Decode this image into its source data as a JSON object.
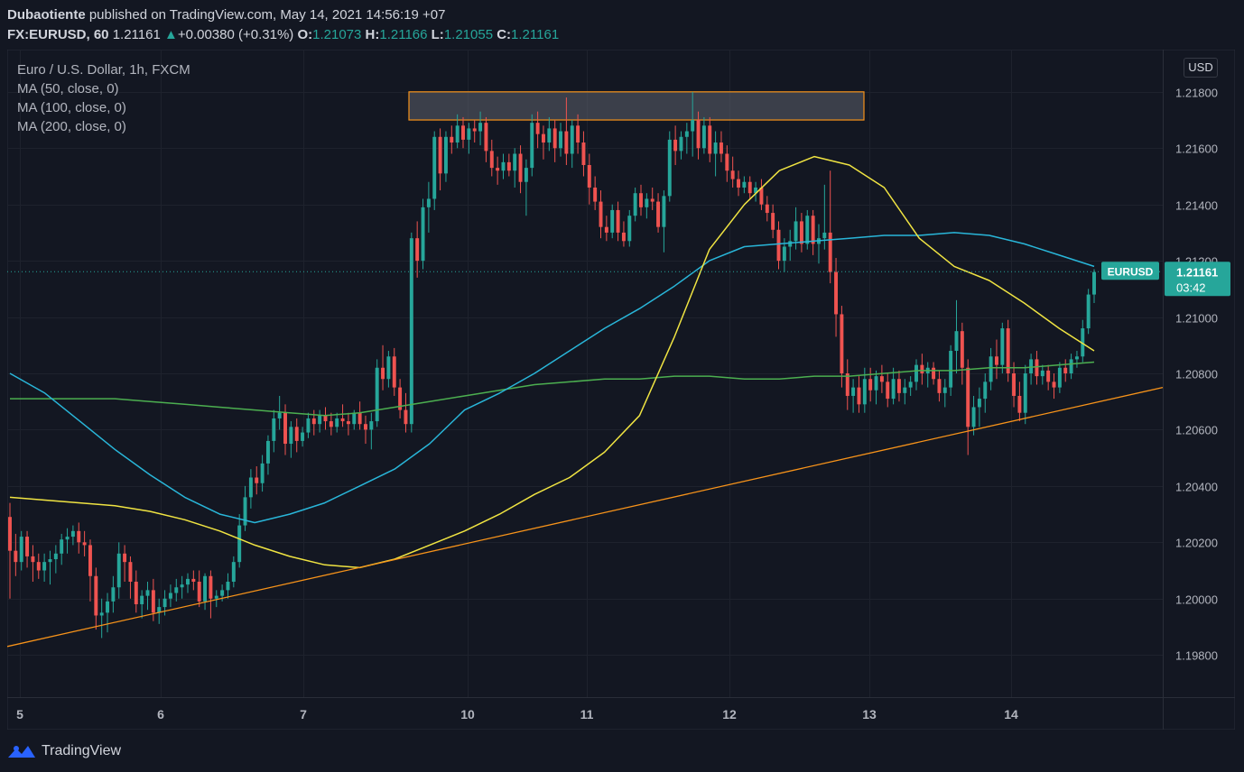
{
  "header": {
    "publisher": "Dubaotiente",
    "published_text": " published on TradingView.com, May 14, 2021 14:56:19 +07",
    "symbol": "FX:EURUSD, 60",
    "last": "1.21161",
    "change_arrow": "▲",
    "change": "+0.00380 (+0.31%)",
    "o_label": "O:",
    "o": "1.21073",
    "h_label": "H:",
    "h": "1.21166",
    "l_label": "L:",
    "l": "1.21055",
    "c_label": "C:",
    "c": "1.21161"
  },
  "legend": {
    "title": "Euro / U.S. Dollar, 1h, FXCM",
    "ma1": "MA (50, close, 0)",
    "ma2": "MA (100, close, 0)",
    "ma3": "MA (200, close, 0)"
  },
  "currency_button": "USD",
  "price_tag": {
    "label": "EURUSD",
    "price": "1.21161",
    "countdown": "03:42"
  },
  "footer": {
    "brand": "TradingView"
  },
  "colors": {
    "background": "#131722",
    "up": "#26a69a",
    "down": "#ef5350",
    "ma50": "#f0e442",
    "ma100": "#29b6d9",
    "ma200": "#4caf50",
    "trendline": "#f7931a",
    "zone_border": "#f7931a",
    "zone_fill": "#5d606b"
  },
  "chart_data": {
    "type": "candlestick",
    "title": "Euro / U.S. Dollar, 1h, FXCM",
    "x_ticks": [
      "5",
      "6",
      "7",
      "10",
      "11",
      "12",
      "13",
      "14"
    ],
    "y_ticks": [
      "1.19800",
      "1.20000",
      "1.20200",
      "1.20400",
      "1.20600",
      "1.20800",
      "1.21000",
      "1.21200",
      "1.21400",
      "1.21600",
      "1.21800"
    ],
    "ylim": [
      1.1965,
      1.2195
    ],
    "current_price": 1.21161,
    "resistance_zone": {
      "from": 1.217,
      "to": 1.218
    },
    "support_trendline": {
      "start": 1.1983,
      "end": 1.2075
    },
    "candles_ohlc": [
      [
        1.2029,
        1.2034,
        1.2,
        1.2017
      ],
      [
        1.2017,
        1.2023,
        1.2008,
        1.2013
      ],
      [
        1.2013,
        1.2024,
        1.201,
        1.2022
      ],
      [
        1.2022,
        1.2024,
        1.2011,
        1.2015
      ],
      [
        1.2015,
        1.2019,
        1.2006,
        1.2013
      ],
      [
        1.2013,
        1.2016,
        1.2007,
        1.201
      ],
      [
        1.201,
        1.2016,
        1.2006,
        1.2013
      ],
      [
        1.2013,
        1.2017,
        1.2005,
        1.2014
      ],
      [
        1.2014,
        1.2019,
        1.2009,
        1.2016
      ],
      [
        1.2016,
        1.2023,
        1.2012,
        1.2021
      ],
      [
        1.2021,
        1.2025,
        1.2016,
        1.2022
      ],
      [
        1.2022,
        1.2026,
        1.2019,
        1.2024
      ],
      [
        1.2024,
        1.2027,
        1.2016,
        1.202
      ],
      [
        1.202,
        1.2024,
        1.2015,
        1.2019
      ],
      [
        1.2019,
        1.2021,
        1.1999,
        1.2008
      ],
      [
        1.2008,
        1.2011,
        1.1989,
        1.1994
      ],
      [
        1.1994,
        1.2,
        1.1986,
        1.1995
      ],
      [
        1.1995,
        1.2002,
        1.1988,
        1.1999
      ],
      [
        1.1999,
        1.2008,
        1.1995,
        1.2004
      ],
      [
        1.2004,
        1.202,
        1.2,
        1.2016
      ],
      [
        1.2016,
        1.2019,
        1.2006,
        1.2013
      ],
      [
        1.2013,
        1.2015,
        1.2,
        1.2006
      ],
      [
        1.2006,
        1.201,
        1.1995,
        1.1998
      ],
      [
        1.1998,
        1.2003,
        1.1993,
        1.2001
      ],
      [
        1.2001,
        1.2006,
        1.1996,
        1.2003
      ],
      [
        1.2003,
        1.2007,
        1.1992,
        1.1995
      ],
      [
        1.1995,
        1.2,
        1.1991,
        1.1997
      ],
      [
        1.1997,
        1.2003,
        1.1994,
        1.2
      ],
      [
        1.2,
        1.2005,
        1.1997,
        1.2002
      ],
      [
        1.2002,
        1.2007,
        1.1999,
        1.2004
      ],
      [
        1.2004,
        1.2008,
        1.2,
        1.2005
      ],
      [
        1.2005,
        1.2009,
        1.2002,
        1.2007
      ],
      [
        1.2007,
        1.201,
        1.2003,
        1.2006
      ],
      [
        1.2006,
        1.201,
        1.1997,
        1.1999
      ],
      [
        1.1999,
        1.2009,
        1.1996,
        1.2008
      ],
      [
        1.2008,
        1.201,
        1.1993,
        1.2
      ],
      [
        1.2,
        1.2003,
        1.1997,
        1.2001
      ],
      [
        1.2001,
        1.2005,
        1.1999,
        1.2003
      ],
      [
        1.2003,
        1.2009,
        1.2,
        1.2006
      ],
      [
        1.2006,
        1.2015,
        1.2004,
        1.2013
      ],
      [
        1.2013,
        1.203,
        1.2011,
        1.2026
      ],
      [
        1.2026,
        1.204,
        1.2024,
        1.2036
      ],
      [
        1.2036,
        1.2046,
        1.2032,
        1.2043
      ],
      [
        1.2043,
        1.2047,
        1.2037,
        1.2041
      ],
      [
        1.2041,
        1.2051,
        1.2038,
        1.2048
      ],
      [
        1.2048,
        1.2058,
        1.2044,
        1.2056
      ],
      [
        1.2056,
        1.2067,
        1.2052,
        1.2064
      ],
      [
        1.2064,
        1.2072,
        1.206,
        1.2066
      ],
      [
        1.2066,
        1.2069,
        1.2051,
        1.2055
      ],
      [
        1.2055,
        1.2063,
        1.205,
        1.2061
      ],
      [
        1.2061,
        1.2064,
        1.2052,
        1.2056
      ],
      [
        1.2056,
        1.2061,
        1.2054,
        1.2059
      ],
      [
        1.2059,
        1.2066,
        1.2057,
        1.2064
      ],
      [
        1.2064,
        1.2067,
        1.2058,
        1.2062
      ],
      [
        1.2062,
        1.2067,
        1.2059,
        1.2065
      ],
      [
        1.2065,
        1.2068,
        1.206,
        1.2063
      ],
      [
        1.2063,
        1.2066,
        1.2058,
        1.2061
      ],
      [
        1.2061,
        1.2066,
        1.2059,
        1.2064
      ],
      [
        1.2064,
        1.2069,
        1.2061,
        1.2063
      ],
      [
        1.2063,
        1.2066,
        1.2058,
        1.2062
      ],
      [
        1.2062,
        1.2067,
        1.206,
        1.2066
      ],
      [
        1.2066,
        1.207,
        1.206,
        1.2062
      ],
      [
        1.2062,
        1.2065,
        1.2055,
        1.206
      ],
      [
        1.206,
        1.2066,
        1.2053,
        1.2063
      ],
      [
        1.2063,
        1.2085,
        1.2061,
        1.2082
      ],
      [
        1.2082,
        1.209,
        1.2074,
        1.2078
      ],
      [
        1.2078,
        1.2088,
        1.2075,
        1.2086
      ],
      [
        1.2086,
        1.2089,
        1.2072,
        1.2075
      ],
      [
        1.2075,
        1.2078,
        1.2064,
        1.2067
      ],
      [
        1.2067,
        1.2073,
        1.2059,
        1.2062
      ],
      [
        1.2062,
        1.213,
        1.2059,
        1.2128
      ],
      [
        1.2128,
        1.2134,
        1.2114,
        1.212
      ],
      [
        1.212,
        1.2142,
        1.2117,
        1.2139
      ],
      [
        1.2139,
        1.2148,
        1.213,
        1.2142
      ],
      [
        1.2142,
        1.2166,
        1.2138,
        1.2164
      ],
      [
        1.2164,
        1.2167,
        1.2145,
        1.2151
      ],
      [
        1.2151,
        1.2166,
        1.2148,
        1.2164
      ],
      [
        1.2164,
        1.2168,
        1.2158,
        1.2162
      ],
      [
        1.2162,
        1.2172,
        1.216,
        1.2168
      ],
      [
        1.2168,
        1.2171,
        1.216,
        1.2163
      ],
      [
        1.2163,
        1.2169,
        1.2158,
        1.2167
      ],
      [
        1.2167,
        1.217,
        1.2162,
        1.2166
      ],
      [
        1.2166,
        1.2173,
        1.2161,
        1.2169
      ],
      [
        1.2169,
        1.2171,
        1.2155,
        1.2159
      ],
      [
        1.2159,
        1.2163,
        1.215,
        1.2153
      ],
      [
        1.2153,
        1.2157,
        1.2147,
        1.2152
      ],
      [
        1.2152,
        1.2158,
        1.2149,
        1.2155
      ],
      [
        1.2155,
        1.2158,
        1.215,
        1.2152
      ],
      [
        1.2152,
        1.216,
        1.2146,
        1.2158
      ],
      [
        1.2158,
        1.2161,
        1.2144,
        1.2148
      ],
      [
        1.2148,
        1.2156,
        1.2136,
        1.2153
      ],
      [
        1.2153,
        1.2172,
        1.215,
        1.2169
      ],
      [
        1.2169,
        1.2173,
        1.216,
        1.2165
      ],
      [
        1.2165,
        1.2168,
        1.2156,
        1.2162
      ],
      [
        1.2162,
        1.2171,
        1.2159,
        1.2167
      ],
      [
        1.2167,
        1.217,
        1.2155,
        1.216
      ],
      [
        1.216,
        1.2169,
        1.2157,
        1.2166
      ],
      [
        1.2166,
        1.2178,
        1.2154,
        1.2158
      ],
      [
        1.2158,
        1.217,
        1.2153,
        1.2168
      ],
      [
        1.2168,
        1.2172,
        1.2158,
        1.2162
      ],
      [
        1.2162,
        1.2166,
        1.215,
        1.2154
      ],
      [
        1.2154,
        1.2158,
        1.214,
        1.2146
      ],
      [
        1.2146,
        1.215,
        1.2138,
        1.2141
      ],
      [
        1.2141,
        1.2145,
        1.2128,
        1.2132
      ],
      [
        1.2132,
        1.2136,
        1.2127,
        1.213
      ],
      [
        1.213,
        1.214,
        1.2128,
        1.2138
      ],
      [
        1.2138,
        1.2141,
        1.2127,
        1.213
      ],
      [
        1.213,
        1.2134,
        1.2125,
        1.2127
      ],
      [
        1.2127,
        1.2138,
        1.2125,
        1.2136
      ],
      [
        1.2136,
        1.2146,
        1.2134,
        1.2144
      ],
      [
        1.2144,
        1.2147,
        1.2136,
        1.2139
      ],
      [
        1.2139,
        1.2144,
        1.2135,
        1.2142
      ],
      [
        1.2142,
        1.2146,
        1.2138,
        1.2141
      ],
      [
        1.2141,
        1.2144,
        1.213,
        1.2132
      ],
      [
        1.2132,
        1.2145,
        1.2123,
        1.2143
      ],
      [
        1.2143,
        1.2166,
        1.2141,
        1.2163
      ],
      [
        1.2163,
        1.2168,
        1.2154,
        1.2159
      ],
      [
        1.2159,
        1.2166,
        1.2156,
        1.2164
      ],
      [
        1.2164,
        1.2169,
        1.2158,
        1.2166
      ],
      [
        1.2166,
        1.218,
        1.2157,
        1.217
      ],
      [
        1.217,
        1.2173,
        1.2156,
        1.216
      ],
      [
        1.216,
        1.2171,
        1.2158,
        1.2168
      ],
      [
        1.2168,
        1.2171,
        1.2155,
        1.2158
      ],
      [
        1.2158,
        1.2166,
        1.215,
        1.2162
      ],
      [
        1.2162,
        1.2166,
        1.2155,
        1.2158
      ],
      [
        1.2158,
        1.2161,
        1.2148,
        1.2152
      ],
      [
        1.2152,
        1.2157,
        1.2146,
        1.2149
      ],
      [
        1.2149,
        1.2152,
        1.2143,
        1.2146
      ],
      [
        1.2146,
        1.215,
        1.2144,
        1.2148
      ],
      [
        1.2148,
        1.215,
        1.2142,
        1.2144
      ],
      [
        1.2144,
        1.2148,
        1.2141,
        1.2146
      ],
      [
        1.2146,
        1.2149,
        1.2138,
        1.214
      ],
      [
        1.214,
        1.2143,
        1.2134,
        1.2137
      ],
      [
        1.2137,
        1.214,
        1.2128,
        1.2131
      ],
      [
        1.2131,
        1.2134,
        1.2117,
        1.212
      ],
      [
        1.212,
        1.2128,
        1.2116,
        1.2125
      ],
      [
        1.2125,
        1.2131,
        1.212,
        1.2127
      ],
      [
        1.2127,
        1.2139,
        1.2124,
        1.2134
      ],
      [
        1.2134,
        1.2137,
        1.2123,
        1.2126
      ],
      [
        1.2126,
        1.2138,
        1.2124,
        1.2136
      ],
      [
        1.2136,
        1.2138,
        1.2122,
        1.2126
      ],
      [
        1.2126,
        1.2133,
        1.2119,
        1.2128
      ],
      [
        1.2128,
        1.2147,
        1.2124,
        1.213
      ],
      [
        1.213,
        1.2152,
        1.2112,
        1.2116
      ],
      [
        1.2116,
        1.2121,
        1.2093,
        1.2101
      ],
      [
        1.2101,
        1.2104,
        1.2075,
        1.208
      ],
      [
        1.208,
        1.2085,
        1.2067,
        1.2072
      ],
      [
        1.2072,
        1.2078,
        1.2066,
        1.2075
      ],
      [
        1.2075,
        1.2079,
        1.2066,
        1.2069
      ],
      [
        1.2069,
        1.2082,
        1.2066,
        1.2078
      ],
      [
        1.2078,
        1.2082,
        1.207,
        1.2074
      ],
      [
        1.2074,
        1.2081,
        1.2069,
        1.2079
      ],
      [
        1.2079,
        1.2083,
        1.2073,
        1.2077
      ],
      [
        1.2077,
        1.208,
        1.2068,
        1.2071
      ],
      [
        1.2071,
        1.2082,
        1.2069,
        1.2078
      ],
      [
        1.2078,
        1.2081,
        1.207,
        1.2073
      ],
      [
        1.2073,
        1.2078,
        1.2069,
        1.2075
      ],
      [
        1.2075,
        1.2079,
        1.2072,
        1.2077
      ],
      [
        1.2077,
        1.2085,
        1.2074,
        1.2083
      ],
      [
        1.2083,
        1.2087,
        1.2076,
        1.208
      ],
      [
        1.208,
        1.2084,
        1.2075,
        1.2082
      ],
      [
        1.2082,
        1.2084,
        1.2076,
        1.2078
      ],
      [
        1.2078,
        1.2081,
        1.207,
        1.2073
      ],
      [
        1.2073,
        1.2078,
        1.2068,
        1.2075
      ],
      [
        1.2075,
        1.209,
        1.2072,
        1.2088
      ],
      [
        1.2088,
        1.2106,
        1.208,
        1.2095
      ],
      [
        1.2095,
        1.2098,
        1.2076,
        1.2082
      ],
      [
        1.2082,
        1.2085,
        1.2051,
        1.2061
      ],
      [
        1.2061,
        1.2072,
        1.2058,
        1.2068
      ],
      [
        1.2068,
        1.2075,
        1.2061,
        1.2071
      ],
      [
        1.2071,
        1.208,
        1.2066,
        1.2077
      ],
      [
        1.2077,
        1.2089,
        1.2074,
        1.2086
      ],
      [
        1.2086,
        1.2092,
        1.2078,
        1.2083
      ],
      [
        1.2083,
        1.2098,
        1.208,
        1.2096
      ],
      [
        1.2096,
        1.2099,
        1.2077,
        1.208
      ],
      [
        1.208,
        1.2084,
        1.2068,
        1.2072
      ],
      [
        1.2072,
        1.2077,
        1.2063,
        1.2066
      ],
      [
        1.2066,
        1.2083,
        1.2062,
        1.208
      ],
      [
        1.208,
        1.2087,
        1.2076,
        1.2085
      ],
      [
        1.2085,
        1.2088,
        1.2076,
        1.2079
      ],
      [
        1.2079,
        1.2083,
        1.2076,
        1.2081
      ],
      [
        1.2081,
        1.2083,
        1.2074,
        1.2077
      ],
      [
        1.2077,
        1.208,
        1.2071,
        1.2075
      ],
      [
        1.2075,
        1.2084,
        1.2073,
        1.2082
      ],
      [
        1.2082,
        1.2085,
        1.2077,
        1.208
      ],
      [
        1.208,
        1.2087,
        1.2078,
        1.2085
      ],
      [
        1.2085,
        1.2088,
        1.2082,
        1.2086
      ],
      [
        1.2086,
        1.2099,
        1.2084,
        1.2096
      ],
      [
        1.2096,
        1.211,
        1.2094,
        1.2108
      ],
      [
        1.2108,
        1.2117,
        1.2105,
        1.2116
      ]
    ],
    "ma50": [
      1.2036,
      1.2035,
      1.2034,
      1.2033,
      1.2031,
      1.2028,
      1.2024,
      1.2019,
      1.2015,
      1.2012,
      1.2011,
      1.2014,
      1.2019,
      1.2024,
      1.203,
      1.2037,
      1.2043,
      1.2052,
      1.2065,
      1.2093,
      1.2124,
      1.214,
      1.2152,
      1.2157,
      1.2154,
      1.2146,
      1.2128,
      1.2118,
      1.2113,
      1.2105,
      1.2096,
      1.2088
    ],
    "ma100": [
      1.208,
      1.2073,
      1.2063,
      1.2053,
      1.2044,
      1.2036,
      1.203,
      1.2027,
      1.203,
      1.2034,
      1.204,
      1.2046,
      1.2055,
      1.2067,
      1.2073,
      1.208,
      1.2088,
      1.2096,
      1.2103,
      1.2111,
      1.212,
      1.2125,
      1.2126,
      1.2127,
      1.2128,
      1.2129,
      1.2129,
      1.213,
      1.2129,
      1.2126,
      1.2122,
      1.2118
    ],
    "ma200": [
      1.2071,
      1.2071,
      1.2071,
      1.2071,
      1.207,
      1.2069,
      1.2068,
      1.2067,
      1.2066,
      1.2065,
      1.2066,
      1.2068,
      1.207,
      1.2072,
      1.2074,
      1.2076,
      1.2077,
      1.2078,
      1.2078,
      1.2079,
      1.2079,
      1.2078,
      1.2078,
      1.2079,
      1.2079,
      1.208,
      1.2081,
      1.2081,
      1.2082,
      1.2082,
      1.2083,
      1.2084
    ]
  }
}
